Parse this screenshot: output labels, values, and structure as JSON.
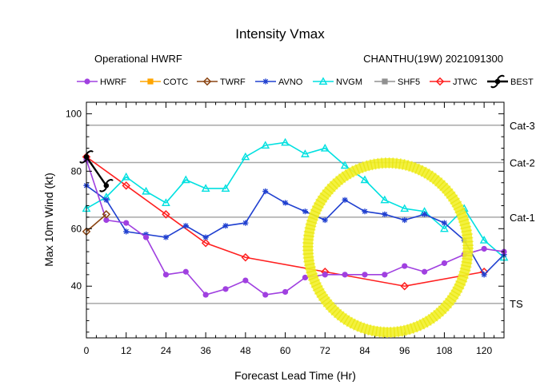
{
  "chart_data": {
    "type": "line",
    "title": "Intensity Vmax",
    "subtitle_left": "Operational HWRF",
    "subtitle_right": "CHANTHU(19W) 2021091300",
    "xlabel": "Forecast Lead Time (Hr)",
    "ylabel": "Max 10m Wind (kt)",
    "xlim": [
      0,
      126
    ],
    "ylim": [
      22,
      104
    ],
    "xticks": [
      0,
      12,
      24,
      36,
      48,
      60,
      72,
      84,
      96,
      108,
      120
    ],
    "yticks": [
      40,
      60,
      80,
      100
    ],
    "grid": false,
    "legend_position": "top",
    "reference_lines": [
      {
        "label": "TS",
        "value": 34
      },
      {
        "label": "Cat-1",
        "value": 64
      },
      {
        "label": "Cat-2",
        "value": 83
      },
      {
        "label": "Cat-3",
        "value": 96
      }
    ],
    "series": [
      {
        "name": "HWRF",
        "color": "#a040e0",
        "marker": "circle",
        "x": [
          0,
          6,
          12,
          18,
          24,
          30,
          36,
          42,
          48,
          54,
          60,
          66,
          72,
          78,
          84,
          90,
          96,
          102,
          108,
          114,
          120,
          126
        ],
        "values": [
          84,
          63,
          62,
          57,
          44,
          45,
          37,
          39,
          42,
          37,
          38,
          43,
          44,
          44,
          44,
          44,
          47,
          45,
          48,
          51,
          53,
          52
        ]
      },
      {
        "name": "COTC",
        "color": "#ffa500",
        "marker": "square",
        "x": [],
        "values": []
      },
      {
        "name": "TWRF",
        "color": "#8b4513",
        "marker": "diamond",
        "x": [
          0,
          6
        ],
        "values": [
          59,
          65
        ]
      },
      {
        "name": "AVNO",
        "color": "#2040d0",
        "marker": "asterisk",
        "x": [
          0,
          6,
          12,
          18,
          24,
          30,
          36,
          42,
          48,
          54,
          60,
          66,
          72,
          78,
          84,
          90,
          96,
          102,
          108,
          114,
          120,
          126
        ],
        "values": [
          75,
          70,
          59,
          58,
          57,
          61,
          57,
          61,
          62,
          73,
          69,
          66,
          63,
          70,
          66,
          65,
          63,
          65,
          62,
          56,
          44,
          51
        ]
      },
      {
        "name": "NVGM",
        "color": "#00e0e0",
        "marker": "triangle",
        "x": [
          0,
          6,
          12,
          18,
          24,
          30,
          36,
          42,
          48,
          54,
          60,
          66,
          72,
          78,
          84,
          90,
          96,
          102,
          108,
          114,
          120,
          126
        ],
        "values": [
          67,
          71,
          78,
          73,
          69,
          77,
          74,
          74,
          85,
          89,
          90,
          86,
          88,
          82,
          77,
          70,
          67,
          66,
          60,
          67,
          56,
          50
        ]
      },
      {
        "name": "SHF5",
        "color": "#909090",
        "marker": "square",
        "x": [],
        "values": []
      },
      {
        "name": "JTWC",
        "color": "#ff2020",
        "marker": "diamond",
        "x": [
          0,
          12,
          24,
          36,
          48,
          72,
          96,
          120
        ],
        "values": [
          85,
          75,
          65,
          55,
          50,
          45,
          40,
          45
        ]
      },
      {
        "name": "BEST",
        "color": "#000000",
        "marker": "hurricane",
        "x": [
          0,
          6
        ],
        "values": [
          85,
          75
        ]
      }
    ]
  }
}
